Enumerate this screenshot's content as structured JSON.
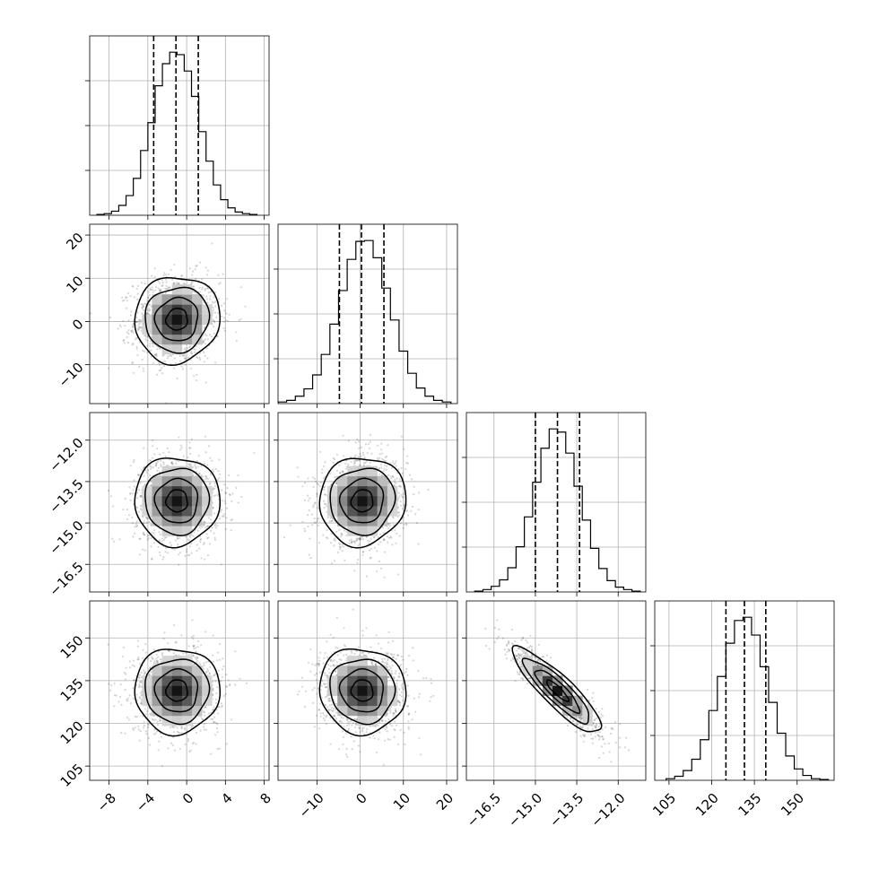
{
  "chart_data": {
    "type": "corner",
    "grid": true,
    "parameters": [
      {
        "range": [
          -10,
          8.5
        ],
        "ticks": [
          -8,
          -4,
          0,
          4,
          8
        ],
        "tick_labels": [
          "−8",
          "−4",
          "0",
          "4",
          "8"
        ],
        "mean": -1.0,
        "sigma": 2.2,
        "quantiles": [
          -3.4,
          -1.1,
          1.2
        ]
      },
      {
        "range": [
          -19,
          22.5
        ],
        "ticks": [
          -10,
          0,
          10,
          20
        ],
        "tick_labels": [
          "−10",
          "0",
          "10",
          "20"
        ],
        "mean": 0.5,
        "sigma": 5.0,
        "quantiles": [
          -4.8,
          0.3,
          5.5
        ]
      },
      {
        "range": [
          -17.5,
          -11
        ],
        "ticks": [
          -16.5,
          -15.0,
          -13.5,
          -12.0
        ],
        "tick_labels": [
          "−16.5",
          "−15.0",
          "−13.5",
          "−12.0"
        ],
        "mean": -14.2,
        "sigma": 0.8,
        "quantiles": [
          -15.0,
          -14.2,
          -13.4
        ]
      },
      {
        "range": [
          100,
          163
        ],
        "ticks": [
          105,
          120,
          135,
          150
        ],
        "tick_labels": [
          "105",
          "120",
          "135",
          "150"
        ],
        "mean": 131.5,
        "sigma": 7.5,
        "quantiles": [
          125.0,
          131.5,
          139.0
        ]
      }
    ],
    "histograms": [
      {
        "parameter": 0,
        "bin_edges": [
          -9.25,
          -8.5,
          -7.75,
          -7.0,
          -6.25,
          -5.5,
          -4.75,
          -4.0,
          -3.25,
          -2.5,
          -1.75,
          -1.0,
          -0.25,
          0.5,
          1.25,
          2.0,
          2.75,
          3.5,
          4.25,
          5.0,
          5.75,
          6.5,
          7.25
        ],
        "counts": [
          1,
          2,
          5,
          12,
          24,
          45,
          79,
          113,
          158,
          185,
          199,
          196,
          176,
          145,
          102,
          66,
          37,
          19,
          9,
          4,
          2,
          1
        ]
      },
      {
        "parameter": 1,
        "bin_edges": [
          -19.0,
          -17.0,
          -15.0,
          -13.0,
          -11.0,
          -9.0,
          -7.0,
          -5.0,
          -3.0,
          -1.0,
          1.0,
          3.0,
          5.0,
          7.0,
          9.0,
          11.0,
          13.0,
          15.0,
          17.0,
          19.0,
          21.0
        ],
        "counts": [
          2,
          4,
          9,
          18,
          35,
          60,
          97,
          138,
          176,
          198,
          199,
          178,
          141,
          102,
          64,
          37,
          19,
          9,
          4,
          2
        ]
      },
      {
        "parameter": 2,
        "bin_edges": [
          -17.2,
          -16.9,
          -16.6,
          -16.3,
          -16.0,
          -15.7,
          -15.4,
          -15.1,
          -14.8,
          -14.5,
          -14.2,
          -13.9,
          -13.6,
          -13.3,
          -13.0,
          -12.7,
          -12.4,
          -12.1,
          -11.8,
          -11.5,
          -11.2
        ],
        "counts": [
          1,
          3,
          7,
          15,
          30,
          56,
          93,
          136,
          178,
          202,
          198,
          172,
          131,
          89,
          54,
          29,
          14,
          6,
          3,
          1
        ]
      },
      {
        "parameter": 3,
        "bin_edges": [
          104,
          107,
          110,
          113,
          116,
          119,
          122,
          125,
          128,
          131,
          134,
          137,
          140,
          143,
          146,
          149,
          152,
          155,
          158,
          161
        ],
        "counts": [
          2,
          5,
          12,
          26,
          50,
          86,
          128,
          169,
          197,
          201,
          179,
          140,
          96,
          58,
          30,
          14,
          6,
          2,
          1
        ]
      }
    ],
    "joint_correlations": [
      {
        "x": 0,
        "y": 1,
        "rho": 0.05
      },
      {
        "x": 0,
        "y": 2,
        "rho": 0.0
      },
      {
        "x": 1,
        "y": 2,
        "rho": 0.05
      },
      {
        "x": 0,
        "y": 3,
        "rho": 0.0
      },
      {
        "x": 1,
        "y": 3,
        "rho": -0.05
      },
      {
        "x": 2,
        "y": 3,
        "rho": -0.88
      }
    ],
    "contour_levels_sigma": [
      0.5,
      1.0,
      1.5,
      2.0
    ],
    "colors": {
      "line": "#000000",
      "grid": "#b0b0b0",
      "density_min": "#ffffff",
      "density_max": "#000000"
    }
  }
}
